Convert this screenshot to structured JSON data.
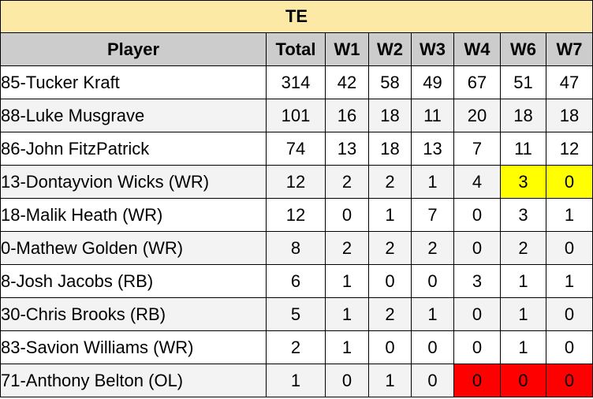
{
  "title": "TE",
  "headers": [
    "Player",
    "Total",
    "W1",
    "W2",
    "W3",
    "W4",
    "W6",
    "W7"
  ],
  "rows": [
    {
      "player": "85-Tucker Kraft",
      "total": "314",
      "w1": "42",
      "w2": "58",
      "w3": "49",
      "w4": "67",
      "w6": "51",
      "w7": "47"
    },
    {
      "player": "88-Luke Musgrave",
      "total": "101",
      "w1": "16",
      "w2": "18",
      "w3": "11",
      "w4": "20",
      "w6": "18",
      "w7": "18"
    },
    {
      "player": "86-John FitzPatrick",
      "total": "74",
      "w1": "13",
      "w2": "18",
      "w3": "13",
      "w4": "7",
      "w6": "11",
      "w7": "12"
    },
    {
      "player": "13-Dontayvion Wicks (WR)",
      "total": "12",
      "w1": "2",
      "w2": "2",
      "w3": "1",
      "w4": "4",
      "w6": "3",
      "w7": "0"
    },
    {
      "player": "18-Malik Heath (WR)",
      "total": "12",
      "w1": "0",
      "w2": "1",
      "w3": "7",
      "w4": "0",
      "w6": "3",
      "w7": "1"
    },
    {
      "player": "0-Mathew Golden (WR)",
      "total": "8",
      "w1": "2",
      "w2": "2",
      "w3": "2",
      "w4": "0",
      "w6": "2",
      "w7": "0"
    },
    {
      "player": "8-Josh Jacobs (RB)",
      "total": "6",
      "w1": "1",
      "w2": "0",
      "w3": "0",
      "w4": "3",
      "w6": "1",
      "w7": "1"
    },
    {
      "player": "30-Chris Brooks (RB)",
      "total": "5",
      "w1": "1",
      "w2": "2",
      "w3": "1",
      "w4": "0",
      "w6": "1",
      "w7": "0"
    },
    {
      "player": "83-Savion Williams (WR)",
      "total": "2",
      "w1": "1",
      "w2": "0",
      "w3": "0",
      "w4": "0",
      "w6": "1",
      "w7": "0"
    },
    {
      "player": "71-Anthony Belton (OL)",
      "total": "1",
      "w1": "0",
      "w2": "1",
      "w3": "0",
      "w4": "0",
      "w6": "0",
      "w7": "0"
    }
  ],
  "highlight_colors": {
    "title_bg": "#fde9a6",
    "header_bg": "#cccccc",
    "yellow": "#ffff00",
    "red": "#ff0000"
  }
}
